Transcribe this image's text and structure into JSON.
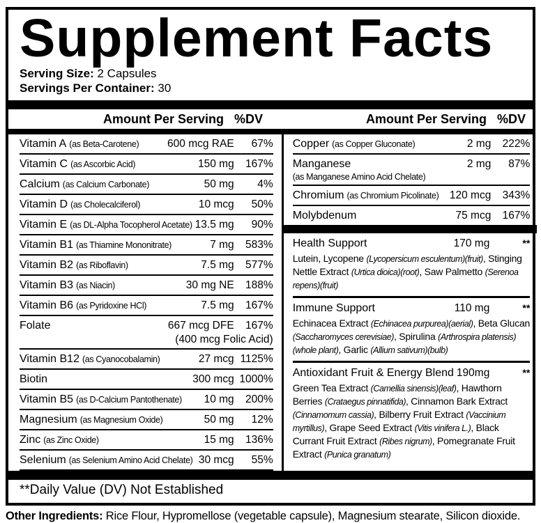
{
  "title": "Supplement Facts",
  "serving": {
    "size_label": "Serving Size:",
    "size_value": "2 Capsules",
    "per_container_label": "Servings Per Container:",
    "per_container_value": "30"
  },
  "table": {
    "amount_header": "Amount Per Serving",
    "dv_header": "%DV",
    "left_rows": [
      {
        "name": "Vitamin A",
        "form": "(as Beta-Carotene)",
        "amount": "600 mcg RAE",
        "dv": "67%"
      },
      {
        "name": "Vitamin C",
        "form": "(as Ascorbic Acid)",
        "amount": "150 mg",
        "dv": "167%"
      },
      {
        "name": "Calcium",
        "form": "(as Calcium Carbonate)",
        "amount": "50 mg",
        "dv": "4%"
      },
      {
        "name": "Vitamin D",
        "form": "(as Cholecalciferol)",
        "amount": "10 mcg",
        "dv": "50%"
      },
      {
        "name": "Vitamin E",
        "form": "(as DL-Alpha Tocopherol Acetate)",
        "amount": "13.5 mg",
        "dv": "90%"
      },
      {
        "name": "Vitamin B1",
        "form": "(as Thiamine Mononitrate)",
        "amount": "7 mg",
        "dv": "583%"
      },
      {
        "name": "Vitamin B2",
        "form": "(as Riboflavin)",
        "amount": "7.5 mg",
        "dv": "577%"
      },
      {
        "name": "Vitamin B3",
        "form": "(as Niacin)",
        "amount": "30 mg NE",
        "dv": "188%"
      },
      {
        "name": "Vitamin B6",
        "form": "(as Pyridoxine HCl)",
        "amount": "7.5 mg",
        "dv": "167%"
      },
      {
        "name": "Folate",
        "form": "",
        "amount": "667 mcg DFE",
        "dv": "167%",
        "amount2": "(400 mcg Folic Acid)"
      },
      {
        "name": "Vitamin B12",
        "form": "(as Cyanocobalamin)",
        "amount": "27 mcg",
        "dv": "1125%"
      },
      {
        "name": "Biotin",
        "form": "",
        "amount": "300 mcg",
        "dv": "1000%"
      },
      {
        "name": "Vitamin B5",
        "form": "(as D-Calcium Pantothenate)",
        "amount": "10 mg",
        "dv": "200%"
      },
      {
        "name": "Magnesium",
        "form": "(as Magnesium Oxide)",
        "amount": "50 mg",
        "dv": "12%"
      },
      {
        "name": "Zinc",
        "form": "(as Zinc Oxide)",
        "amount": "15 mg",
        "dv": "136%"
      },
      {
        "name": "Selenium",
        "form": "(as Selenium Amino Acid Chelate)",
        "amount": "30 mcg",
        "dv": "55%"
      }
    ],
    "right_rows": [
      {
        "name": "Copper",
        "form": "(as Copper Gluconate)",
        "amount": "2 mg",
        "dv": "222%"
      },
      {
        "name": "Manganese",
        "form": "(as Manganese Amino Acid Chelate)",
        "form_block": true,
        "amount": "2 mg",
        "dv": "87%"
      },
      {
        "name": "Chromium",
        "form": "(as Chromium Picolinate)",
        "amount": "120 mcg",
        "dv": "343%"
      },
      {
        "name": "Molybdenum",
        "form": "",
        "amount": "75 mcg",
        "dv": "167%",
        "last": true
      }
    ],
    "blends": [
      {
        "name": "Health Support",
        "amount": "170 mg",
        "dv": "**",
        "desc": [
          {
            "t": "Lutein, Lycopene "
          },
          {
            "t": "(Lycopersicum esculentum)(fruit)",
            "i": true
          },
          {
            "t": ", Stinging Nettle Extract "
          },
          {
            "t": "(Urtica dioica)(root)",
            "i": true
          },
          {
            "t": ", Saw Palmetto "
          },
          {
            "t": "(Serenoa repens)(fruit)",
            "i": true
          }
        ]
      },
      {
        "name": "Immune Support",
        "amount": "110 mg",
        "dv": "**",
        "desc": [
          {
            "t": "Echinacea Extract "
          },
          {
            "t": "(Echinacea purpurea)(aerial)",
            "i": true
          },
          {
            "t": ", Beta Glucan "
          },
          {
            "t": "(Saccharomyces cerevisiae)",
            "i": true
          },
          {
            "t": ", Spirulina "
          },
          {
            "t": "(Arthrospira platensis)(whole plant)",
            "i": true
          },
          {
            "t": ", Garlic "
          },
          {
            "t": "(Allium sativum)(bulb)",
            "i": true
          }
        ]
      },
      {
        "name": "Antioxidant Fruit & Energy Blend",
        "amount": "190mg",
        "dv": "**",
        "desc": [
          {
            "t": "Green Tea Extract "
          },
          {
            "t": "(Camellia sinensis)(leaf)",
            "i": true
          },
          {
            "t": ", Hawthorn Berries "
          },
          {
            "t": "(Crataegus pinnatifida)",
            "i": true
          },
          {
            "t": ", Cinnamon Bark Extract "
          },
          {
            "t": "(Cinnamomum cassia)",
            "i": true
          },
          {
            "t": ", Bilberry Fruit Extract "
          },
          {
            "t": "(Vaccinium myrtillus)",
            "i": true
          },
          {
            "t": ", Grape Seed Extract "
          },
          {
            "t": "(Vitis vinifera L.)",
            "i": true
          },
          {
            "t": ", Black Currant Fruit Extract "
          },
          {
            "t": "(Ribes nigrum)",
            "i": true
          },
          {
            "t": ", Pomegranate Fruit Extract "
          },
          {
            "t": "(Punica granatum)",
            "i": true
          }
        ]
      }
    ]
  },
  "footnote": "**Daily Value (DV) Not Established",
  "other_ingredients": {
    "label": "Other Ingredients:",
    "value": " Rice Flour, Hypromellose (vegetable capsule), Magnesium stearate, Silicon dioxide."
  }
}
